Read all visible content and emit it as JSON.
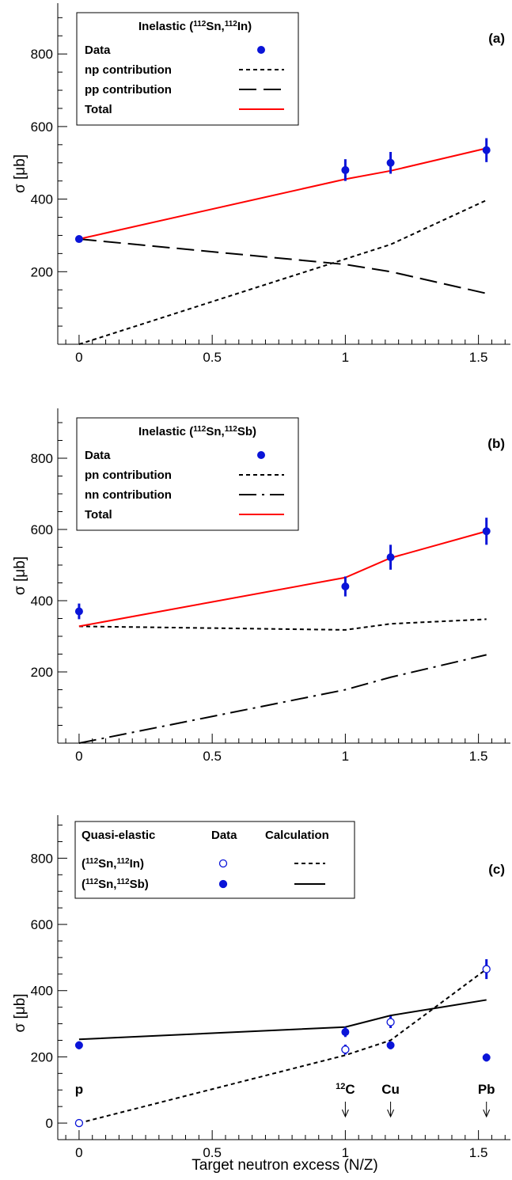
{
  "chart_data": [
    {
      "type": "line",
      "panel_label": "(a)",
      "ylabel": "σ [μb]",
      "xlim": [
        -0.08,
        1.62
      ],
      "ylim": [
        0,
        940
      ],
      "xticks": [
        "0",
        "0.5",
        "1",
        "1.5"
      ],
      "yticks": [
        "200",
        "400",
        "600",
        "800"
      ],
      "legend": {
        "title": "Inelastic (",
        "title_parts": [
          "112",
          "Sn,",
          "112",
          "In)"
        ],
        "entries": [
          "Data",
          "np contribution",
          "pp contribution",
          "Total"
        ]
      },
      "data": {
        "name": "Data",
        "x": [
          0,
          1,
          1.17,
          1.53
        ],
        "y": [
          290,
          480,
          500,
          535
        ],
        "err": [
          0,
          30,
          30,
          33
        ]
      },
      "series": [
        {
          "name": "np contribution",
          "style": "dotted",
          "color": "#000000",
          "x": [
            0,
            1,
            1.17,
            1.53
          ],
          "y": [
            0,
            235,
            275,
            397
          ]
        },
        {
          "name": "pp contribution",
          "style": "dashed",
          "color": "#000000",
          "x": [
            0,
            1,
            1.17,
            1.53
          ],
          "y": [
            290,
            220,
            200,
            140
          ]
        },
        {
          "name": "Total",
          "style": "solid",
          "color": "#ff0000",
          "x": [
            0,
            1,
            1.17,
            1.53
          ],
          "y": [
            290,
            455,
            478,
            540
          ]
        }
      ]
    },
    {
      "type": "line",
      "panel_label": "(b)",
      "ylabel": "σ [μb]",
      "xlim": [
        -0.08,
        1.62
      ],
      "ylim": [
        0,
        940
      ],
      "xticks": [
        "0",
        "0.5",
        "1",
        "1.5"
      ],
      "yticks": [
        "200",
        "400",
        "600",
        "800"
      ],
      "legend": {
        "title": "Inelastic (",
        "title_parts": [
          "112",
          "Sn,",
          "112",
          "Sb)"
        ],
        "entries": [
          "Data",
          "pn contribution",
          "nn contribution",
          "Total"
        ]
      },
      "data": {
        "name": "Data",
        "x": [
          0,
          1,
          1.17,
          1.53
        ],
        "y": [
          370,
          440,
          522,
          595
        ],
        "err": [
          22,
          28,
          35,
          38
        ]
      },
      "series": [
        {
          "name": "pn contribution",
          "style": "dotted",
          "color": "#000000",
          "x": [
            0,
            1,
            1.17,
            1.53
          ],
          "y": [
            328,
            318,
            335,
            348
          ]
        },
        {
          "name": "nn contribution",
          "style": "dashdot",
          "color": "#000000",
          "x": [
            0,
            1,
            1.17,
            1.53
          ],
          "y": [
            0,
            150,
            185,
            248
          ]
        },
        {
          "name": "Total",
          "style": "solid",
          "color": "#ff0000",
          "x": [
            0,
            1,
            1.17,
            1.53
          ],
          "y": [
            328,
            465,
            520,
            595
          ]
        }
      ]
    },
    {
      "type": "line",
      "panel_label": "(c)",
      "ylabel": "σ [μb]",
      "xlabel": "Target neutron excess (N/Z)",
      "xlim": [
        -0.08,
        1.62
      ],
      "ylim": [
        -50,
        930
      ],
      "xticks": [
        "0",
        "0.5",
        "1",
        "1.5"
      ],
      "yticks": [
        "0",
        "200",
        "400",
        "600",
        "800"
      ],
      "legend": {
        "headers": [
          "Quasi-elastic",
          "Data",
          "Calculation"
        ],
        "rows": [
          {
            "label_parts": [
              "(",
              "112",
              "Sn,",
              "112",
              "In)"
            ]
          },
          {
            "label_parts": [
              "(",
              "112",
              "Sn,",
              "112",
              "Sb)"
            ]
          }
        ]
      },
      "data_open": {
        "name": "(112Sn,112In)",
        "x": [
          0,
          1,
          1.17,
          1.53
        ],
        "y": [
          0,
          222,
          305,
          465
        ],
        "err": [
          0,
          15,
          18,
          30
        ]
      },
      "data_filled": {
        "name": "(112Sn,112Sb)",
        "x": [
          0,
          1,
          1.17,
          1.53
        ],
        "y": [
          235,
          275,
          235,
          198
        ],
        "err": [
          12,
          15,
          12,
          12
        ]
      },
      "series": [
        {
          "name": "(112Sn,112In)",
          "style": "dotted",
          "color": "#000000",
          "x": [
            0,
            1,
            1.17,
            1.53
          ],
          "y": [
            0,
            205,
            250,
            465
          ]
        },
        {
          "name": "(112Sn,112Sb)",
          "style": "solid",
          "color": "#000000",
          "x": [
            0,
            1,
            1.17,
            1.53
          ],
          "y": [
            253,
            290,
            325,
            372
          ]
        }
      ],
      "targets": [
        {
          "label": "p",
          "x": 0,
          "arrow": false
        },
        {
          "label": "C",
          "sup": "12",
          "x": 1,
          "arrow": true
        },
        {
          "label": "Cu",
          "x": 1.17,
          "arrow": true
        },
        {
          "label": "Pb",
          "x": 1.53,
          "arrow": true
        }
      ]
    }
  ]
}
